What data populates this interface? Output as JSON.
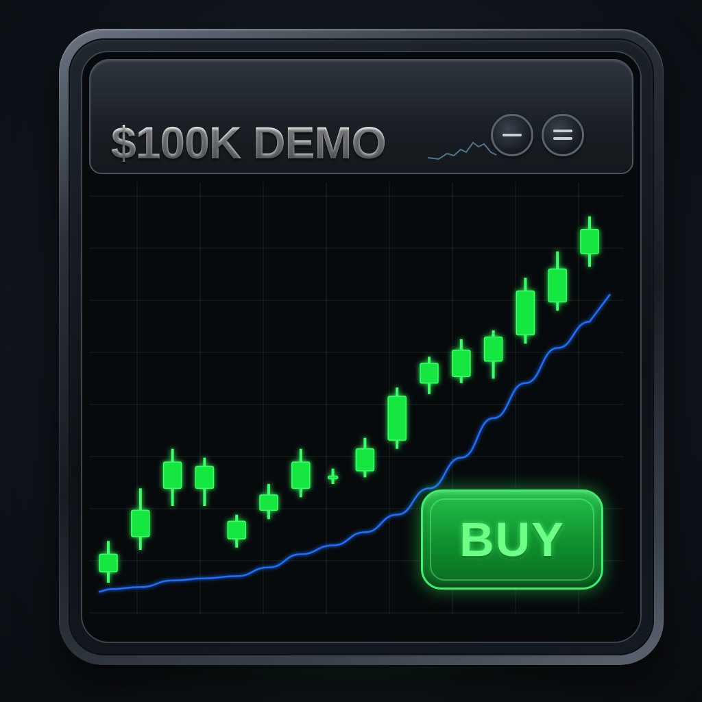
{
  "window": {
    "title": "$100K DEMO",
    "minimize_icon": "minimize-icon",
    "menu_icon": "menu-icon",
    "sparkline_icon": "sparkline-icon"
  },
  "actions": {
    "buy_label": "BUY"
  },
  "colors": {
    "bull_candle": "#19e63f",
    "bull_candle_glow": "#3dff6a",
    "moving_average": "#1e6fff",
    "grid": "#1a2420",
    "accent_green": "#22c24a"
  },
  "chart_data": {
    "type": "candlestick",
    "overlay": "moving-average-line",
    "grid": true,
    "candles": [
      {
        "open": 10,
        "close": 18,
        "high": 24,
        "low": 5
      },
      {
        "open": 26,
        "close": 38,
        "high": 48,
        "low": 20
      },
      {
        "open": 48,
        "close": 60,
        "high": 66,
        "low": 40
      },
      {
        "open": 58,
        "close": 48,
        "high": 62,
        "low": 40
      },
      {
        "open": 33,
        "close": 25,
        "high": 36,
        "low": 21
      },
      {
        "open": 38,
        "close": 45,
        "high": 50,
        "low": 34
      },
      {
        "open": 48,
        "close": 60,
        "high": 66,
        "low": 44
      },
      {
        "open": 52,
        "close": 53,
        "high": 57,
        "low": 50
      },
      {
        "open": 56,
        "close": 66,
        "high": 71,
        "low": 53
      },
      {
        "open": 70,
        "close": 90,
        "high": 94,
        "low": 66
      },
      {
        "open": 96,
        "close": 105,
        "high": 108,
        "low": 91
      },
      {
        "open": 99,
        "close": 111,
        "high": 116,
        "low": 96
      },
      {
        "open": 106,
        "close": 117,
        "high": 120,
        "low": 98
      },
      {
        "open": 118,
        "close": 138,
        "high": 144,
        "low": 114
      },
      {
        "open": 133,
        "close": 148,
        "high": 156,
        "low": 129
      },
      {
        "open": 155,
        "close": 166,
        "high": 172,
        "low": 149
      }
    ],
    "moving_average": [
      2,
      3,
      6,
      7,
      8,
      12,
      18,
      22,
      28,
      36,
      48,
      62,
      80,
      96,
      112,
      124
    ]
  }
}
